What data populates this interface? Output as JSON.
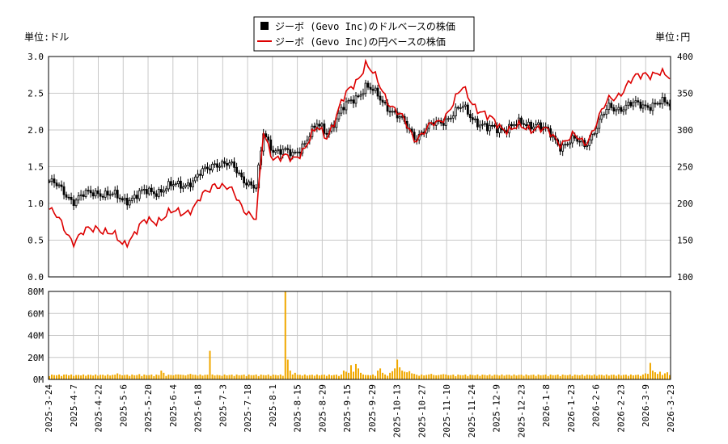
{
  "chart_data": {
    "type": "candlestick-with-line-and-volume",
    "legend": [
      {
        "name": "ジーボ (Gevo Inc)のドルベースの株価",
        "swatch": "black-square"
      },
      {
        "name": "ジーボ (Gevo Inc)の円ベースの株価",
        "swatch": "red-line"
      }
    ],
    "left_unit_label": "単位:ドル",
    "right_unit_label": "単位:円",
    "price_axis_left": {
      "min": 0.0,
      "max": 3.0,
      "ticks": [
        "0.0",
        "0.5",
        "1.0",
        "1.5",
        "2.0",
        "2.5",
        "3.0"
      ]
    },
    "price_axis_right": {
      "min": 100,
      "max": 400,
      "ticks": [
        "100",
        "150",
        "200",
        "250",
        "300",
        "350",
        "400"
      ]
    },
    "volume_axis": {
      "min": 0,
      "max": 80,
      "unit": "M",
      "ticks": [
        "0M",
        "20M",
        "40M",
        "60M",
        "80M"
      ]
    },
    "x_ticks": [
      "2025-3-24",
      "2025-4-7",
      "2025-4-22",
      "2025-5-6",
      "2025-5-20",
      "2025-6-4",
      "2025-6-18",
      "2025-7-3",
      "2025-7-18",
      "2025-8-1",
      "2025-8-15",
      "2025-8-29",
      "2025-9-15",
      "2025-9-29",
      "2025-10-13",
      "2025-10-27",
      "2025-11-10",
      "2025-11-24",
      "2025-12-9",
      "2025-12-23",
      "2026-1-8",
      "2026-1-23",
      "2026-2-6",
      "2026-2-23",
      "2026-3-9",
      "2026-3-23"
    ],
    "anchors_index": [
      0,
      10,
      20,
      30,
      40,
      50,
      60,
      68,
      76,
      85,
      88,
      92,
      100,
      110,
      114,
      120,
      130,
      140,
      150,
      160,
      170,
      180,
      190,
      200,
      210,
      215,
      220,
      230,
      245,
      253
    ],
    "anchors_usd": [
      1.3,
      1.05,
      1.17,
      1.05,
      1.15,
      1.22,
      1.32,
      1.57,
      1.48,
      1.18,
      1.95,
      1.75,
      1.65,
      2.05,
      1.98,
      2.25,
      2.6,
      2.3,
      1.92,
      2.1,
      2.3,
      2.0,
      2.05,
      2.1,
      1.8,
      1.85,
      1.8,
      2.3,
      2.35,
      2.35
    ],
    "anchors_jpy": [
      192,
      150,
      170,
      145,
      175,
      185,
      195,
      230,
      212,
      175,
      295,
      265,
      258,
      300,
      292,
      335,
      390,
      338,
      290,
      310,
      355,
      315,
      300,
      305,
      285,
      290,
      282,
      340,
      380,
      372
    ],
    "volume_base_M": 3.0,
    "volume_spikes": {
      "7": 4.5,
      "11": 4.0,
      "28": 5.5,
      "37": 4.8,
      "46": 8.0,
      "47": 6.0,
      "53": 4.5,
      "58": 5.0,
      "66": 26.0,
      "70": 3.8,
      "97": 82.0,
      "98": 18.0,
      "99": 8.0,
      "101": 6.0,
      "107": 4.0,
      "121": 8.0,
      "122": 7.0,
      "123": 6.0,
      "124": 13.0,
      "125": 7.0,
      "126": 14.0,
      "127": 10.0,
      "128": 6.0,
      "129": 4.5,
      "130": 4.0,
      "135": 8.0,
      "136": 10.0,
      "137": 6.0,
      "140": 6.0,
      "141": 7.5,
      "142": 10.0,
      "143": 18.0,
      "144": 11.0,
      "145": 8.0,
      "146": 7.0,
      "147": 6.5,
      "148": 7.5,
      "149": 5.5,
      "150": 5.0,
      "156": 4.5,
      "157": 5.0,
      "158": 4.0,
      "162": 4.8,
      "245": 5.5,
      "246": 5.0,
      "247": 15.0,
      "248": 8.0,
      "249": 6.5,
      "250": 5.0,
      "251": 7.0,
      "252": 4.0,
      "253": 5.5,
      "254": 6.5
    }
  }
}
